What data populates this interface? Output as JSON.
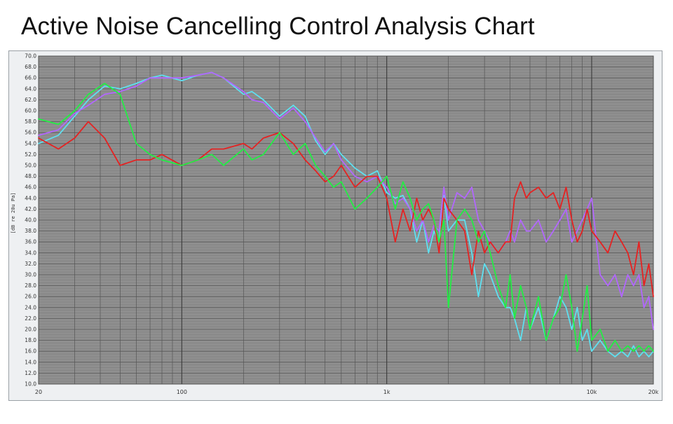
{
  "title": "Active Noise Cancelling Control Analysis Chart",
  "colors": {
    "plot_bg": "#8f8f8f",
    "grid_minor": "#7c7c7c",
    "grid_major": "#555555",
    "frame_bg": "#eef0f2"
  },
  "chart_data": {
    "type": "line",
    "title": "Active Noise Cancelling Control Analysis Chart",
    "ylabel": "[dB re 20u Pa]",
    "xlabel": "",
    "xscale": "log",
    "xlim": [
      20,
      20000
    ],
    "ylim": [
      10,
      70
    ],
    "grid": true,
    "x_tick_labels": [
      {
        "value": 20,
        "label": "20"
      },
      {
        "value": 100,
        "label": "100"
      },
      {
        "value": 1000,
        "label": "1k"
      },
      {
        "value": 10000,
        "label": "10k"
      },
      {
        "value": 20000,
        "label": "20k"
      }
    ],
    "y_tick_labels": [
      "10.0",
      "12.0",
      "14.0",
      "16.0",
      "18.0",
      "20.0",
      "22.0",
      "24.0",
      "26.0",
      "28.0",
      "30.0",
      "32.0",
      "34.0",
      "36.0",
      "38.0",
      "40.0",
      "42.0",
      "44.0",
      "46.0",
      "48.0",
      "50.0",
      "52.0",
      "54.0",
      "56.0",
      "58.0",
      "60.0",
      "62.0",
      "64.0",
      "66.0",
      "68.0",
      "70.0"
    ],
    "series": [
      {
        "color": "#5ee0f0",
        "x": [
          20,
          25,
          30,
          35,
          42,
          50,
          60,
          70,
          80,
          100,
          120,
          140,
          160,
          200,
          220,
          250,
          300,
          350,
          400,
          450,
          500,
          550,
          600,
          700,
          800,
          900,
          1000,
          1100,
          1200,
          1300,
          1400,
          1500,
          1600,
          1700,
          1800,
          1900,
          2000,
          2200,
          2400,
          2600,
          2800,
          3000,
          3200,
          3500,
          3800,
          4000,
          4200,
          4500,
          4800,
          5000,
          5500,
          6000,
          6500,
          7000,
          7500,
          8000,
          8500,
          9000,
          9500,
          10000,
          11000,
          12000,
          13000,
          14000,
          15000,
          16000,
          17000,
          18000,
          19000,
          20000
        ],
        "y": [
          54,
          55.5,
          59,
          62,
          64.5,
          64,
          65,
          66,
          66.5,
          65.5,
          66.5,
          67,
          66,
          63,
          63.5,
          62,
          59,
          61,
          59,
          54.5,
          52,
          54,
          52,
          49.5,
          48,
          49,
          45,
          44,
          44.5,
          42,
          36,
          40,
          34,
          38,
          36,
          44.5,
          38,
          40,
          40,
          34,
          26,
          32,
          30,
          26,
          24,
          24,
          22,
          18,
          24,
          20,
          24,
          18,
          22,
          26,
          24,
          20,
          24,
          18,
          20,
          16,
          18,
          16,
          15,
          16,
          15,
          17,
          15,
          16,
          15,
          16
        ]
      },
      {
        "color": "#b266ff",
        "x": [
          20,
          25,
          30,
          35,
          42,
          50,
          60,
          70,
          80,
          100,
          120,
          140,
          160,
          200,
          220,
          250,
          300,
          350,
          400,
          450,
          500,
          550,
          600,
          700,
          800,
          900,
          1000,
          1100,
          1200,
          1300,
          1400,
          1500,
          1600,
          1700,
          1800,
          1900,
          2000,
          2200,
          2400,
          2600,
          2800,
          3000,
          3200,
          3500,
          3800,
          4000,
          4200,
          4500,
          4800,
          5000,
          5500,
          6000,
          6500,
          7000,
          7500,
          8000,
          8500,
          9000,
          9500,
          10000,
          11000,
          12000,
          13000,
          14000,
          15000,
          16000,
          17000,
          18000,
          19000,
          20000
        ],
        "y": [
          55.5,
          56.5,
          59.5,
          61,
          63,
          63.5,
          64.5,
          66,
          66,
          66,
          66.5,
          67,
          66,
          63.5,
          62,
          61.5,
          58.5,
          60.5,
          58,
          55,
          52.5,
          54,
          51,
          48,
          47,
          48,
          46,
          43,
          44,
          42,
          38,
          40,
          36,
          39,
          38,
          46,
          40,
          45,
          44,
          46,
          40,
          38,
          36,
          34,
          36,
          38,
          36,
          40,
          38,
          38,
          40,
          36,
          38,
          40,
          42,
          36,
          38,
          40,
          42,
          44,
          30,
          28,
          30,
          26,
          30,
          28,
          30,
          24,
          26,
          20
        ]
      },
      {
        "color": "#e52222",
        "x": [
          20,
          25,
          30,
          35,
          42,
          50,
          60,
          70,
          80,
          100,
          120,
          140,
          160,
          200,
          220,
          250,
          300,
          350,
          400,
          450,
          500,
          550,
          600,
          700,
          800,
          900,
          1000,
          1100,
          1200,
          1300,
          1400,
          1500,
          1600,
          1700,
          1800,
          1900,
          2000,
          2200,
          2400,
          2600,
          2800,
          3000,
          3200,
          3500,
          3800,
          4000,
          4200,
          4500,
          4800,
          5000,
          5500,
          6000,
          6500,
          7000,
          7500,
          8000,
          8500,
          9000,
          9500,
          10000,
          11000,
          12000,
          13000,
          14000,
          15000,
          16000,
          17000,
          18000,
          19000,
          20000
        ],
        "y": [
          55,
          53,
          55,
          58,
          55,
          50,
          51,
          51,
          52,
          50,
          51,
          53,
          53,
          54,
          53,
          55,
          56,
          54,
          51,
          49,
          47,
          48,
          50,
          46,
          48,
          48,
          44,
          36,
          42,
          38,
          44,
          40,
          42,
          40,
          34,
          44,
          42,
          40,
          38,
          30,
          38,
          34,
          36,
          34,
          36,
          36,
          44,
          47,
          44,
          45,
          46,
          44,
          45,
          42,
          46,
          40,
          36,
          38,
          42,
          38,
          36,
          34,
          38,
          36,
          34,
          30,
          36,
          28,
          32,
          26
        ]
      },
      {
        "color": "#22ee44",
        "x": [
          20,
          25,
          30,
          35,
          42,
          50,
          60,
          70,
          80,
          100,
          120,
          140,
          160,
          200,
          220,
          250,
          300,
          350,
          400,
          450,
          500,
          550,
          600,
          700,
          800,
          900,
          1000,
          1100,
          1200,
          1300,
          1400,
          1500,
          1600,
          1700,
          1800,
          1900,
          2000,
          2200,
          2400,
          2600,
          2800,
          3000,
          3200,
          3500,
          3800,
          4000,
          4200,
          4500,
          4800,
          5000,
          5500,
          6000,
          6500,
          7000,
          7500,
          8000,
          8500,
          9000,
          9500,
          10000,
          11000,
          12000,
          13000,
          14000,
          15000,
          16000,
          17000,
          18000,
          19000,
          20000
        ],
        "y": [
          58.5,
          57.5,
          60,
          63,
          65,
          63,
          54,
          52,
          51,
          50,
          51,
          52,
          50,
          53,
          51,
          52,
          56,
          52,
          54,
          50,
          48,
          46,
          47,
          42,
          44,
          46,
          48,
          42,
          47,
          44,
          40,
          42,
          43,
          40,
          36,
          40,
          24,
          40,
          42,
          40,
          36,
          38,
          34,
          28,
          24,
          30,
          22,
          28,
          24,
          20,
          26,
          18,
          22,
          24,
          30,
          24,
          16,
          22,
          28,
          18,
          20,
          16,
          18,
          16,
          17,
          16,
          17,
          16,
          17,
          16
        ]
      }
    ]
  }
}
